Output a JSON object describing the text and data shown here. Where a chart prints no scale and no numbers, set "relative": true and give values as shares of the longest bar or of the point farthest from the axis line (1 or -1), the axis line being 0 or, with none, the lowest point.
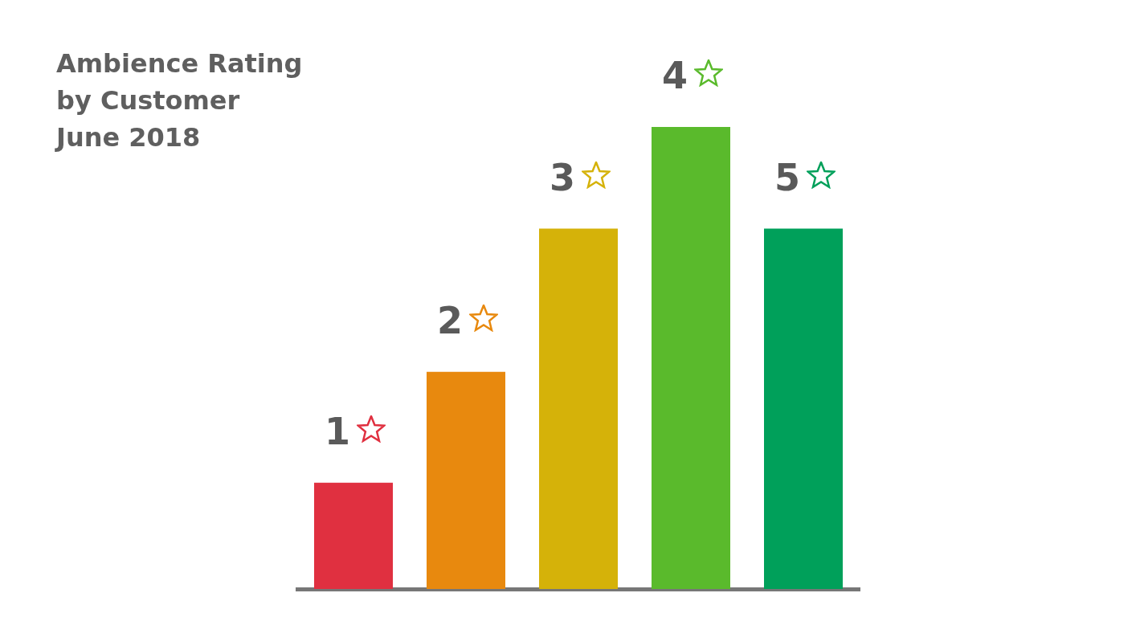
{
  "chart_data": {
    "type": "bar",
    "title": "Ambience Rating\nby Customer\nJune 2018",
    "categories": [
      "1",
      "2",
      "3",
      "4",
      "5"
    ],
    "values": [
      0.23,
      0.47,
      0.78,
      1,
      0.78
    ],
    "colors": [
      "#e03040",
      "#e8890e",
      "#d5b209",
      "#5aba2c",
      "#00a05a"
    ],
    "relative": true,
    "grid": false,
    "legend": false
  }
}
